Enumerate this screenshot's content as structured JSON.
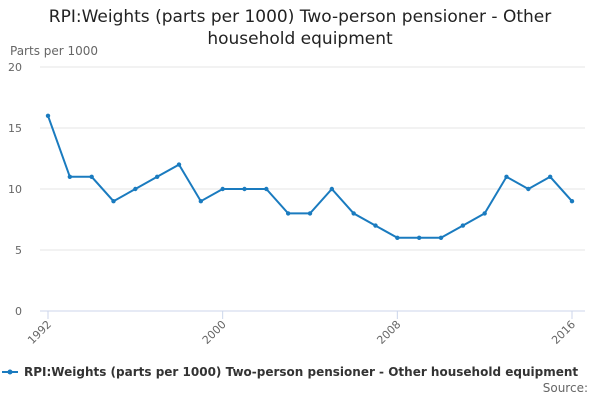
{
  "chart_data": {
    "type": "line",
    "title": "RPI:Weights (parts per 1000) Two-person pensioner - Other household equipment",
    "y_label": "Parts per 1000",
    "source": "Source:",
    "x": [
      1992,
      1993,
      1994,
      1995,
      1996,
      1997,
      1998,
      1999,
      2000,
      2001,
      2002,
      2003,
      2004,
      2005,
      2006,
      2007,
      2008,
      2009,
      2010,
      2011,
      2012,
      2013,
      2014,
      2015,
      2016
    ],
    "series": [
      {
        "name": "RPI:Weights (parts per 1000) Two-person pensioner - Other household equipment",
        "color": "#1a7bbf",
        "values": [
          16,
          11,
          11,
          9,
          10,
          11,
          12,
          9,
          10,
          10,
          10,
          8,
          8,
          10,
          8,
          7,
          6,
          6,
          6,
          7,
          8,
          11,
          10,
          11,
          9
        ]
      }
    ],
    "xlim": [
      1992,
      2016
    ],
    "xticks": [
      1992,
      2000,
      2008,
      2016
    ],
    "ylim": [
      0,
      20
    ],
    "yticks": [
      0,
      5,
      10,
      15,
      20
    ],
    "grid": true
  }
}
